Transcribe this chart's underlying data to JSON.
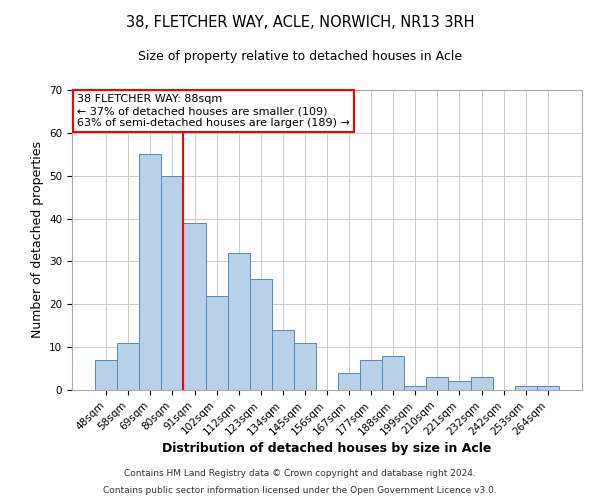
{
  "title": "38, FLETCHER WAY, ACLE, NORWICH, NR13 3RH",
  "subtitle": "Size of property relative to detached houses in Acle",
  "xlabel": "Distribution of detached houses by size in Acle",
  "ylabel": "Number of detached properties",
  "footnote1": "Contains HM Land Registry data © Crown copyright and database right 2024.",
  "footnote2": "Contains public sector information licensed under the Open Government Licence v3.0.",
  "categories": [
    "48sqm",
    "58sqm",
    "69sqm",
    "80sqm",
    "91sqm",
    "102sqm",
    "112sqm",
    "123sqm",
    "134sqm",
    "145sqm",
    "156sqm",
    "167sqm",
    "177sqm",
    "188sqm",
    "199sqm",
    "210sqm",
    "221sqm",
    "232sqm",
    "242sqm",
    "253sqm",
    "264sqm"
  ],
  "values": [
    7,
    11,
    55,
    50,
    39,
    22,
    32,
    26,
    14,
    11,
    0,
    4,
    7,
    8,
    1,
    3,
    2,
    3,
    0,
    1,
    1
  ],
  "bar_color": "#b8d0e8",
  "bar_edge_color": "#5588bb",
  "vline_color": "red",
  "vline_x_index": 4,
  "annotation_text": "38 FLETCHER WAY: 88sqm\n← 37% of detached houses are smaller (109)\n63% of semi-detached houses are larger (189) →",
  "annotation_box_color": "white",
  "annotation_box_edge_color": "red",
  "ylim": [
    0,
    70
  ],
  "yticks": [
    0,
    10,
    20,
    30,
    40,
    50,
    60,
    70
  ],
  "background_color": "white",
  "grid_color": "#cccccc",
  "title_fontsize": 10.5,
  "subtitle_fontsize": 9,
  "axis_label_fontsize": 9,
  "tick_fontsize": 7.5,
  "annotation_fontsize": 8,
  "footnote_fontsize": 6.5
}
